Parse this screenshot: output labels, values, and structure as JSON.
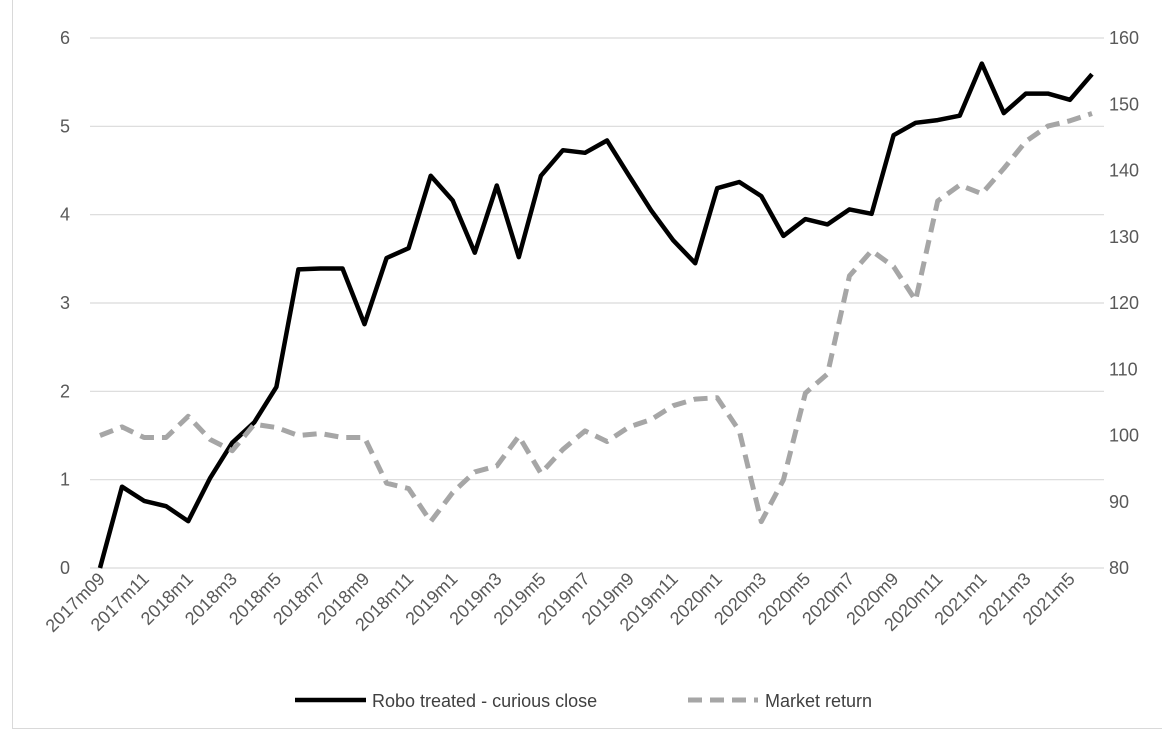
{
  "chart_data": {
    "type": "line",
    "title": "",
    "xlabel": "",
    "ylabel": "",
    "y2label": "",
    "x": [
      "2017m09",
      "2017m10",
      "2017m11",
      "2017m12",
      "2018m1",
      "2018m2",
      "2018m3",
      "2018m4",
      "2018m5",
      "2018m6",
      "2018m7",
      "2018m8",
      "2018m9",
      "2018m10",
      "2018m11",
      "2018m12",
      "2019m1",
      "2019m2",
      "2019m3",
      "2019m4",
      "2019m5",
      "2019m6",
      "2019m7",
      "2019m8",
      "2019m9",
      "2019m10",
      "2019m11",
      "2019m12",
      "2020m1",
      "2020m2",
      "2020m3",
      "2020m4",
      "2020m5",
      "2020m6",
      "2020m7",
      "2020m8",
      "2020m9",
      "2020m10",
      "2020m11",
      "2020m12",
      "2021m1",
      "2021m2",
      "2021m3",
      "2021m4",
      "2021m5",
      "2021m6"
    ],
    "x_tick_labels": [
      "2017m09",
      "2017m11",
      "2018m1",
      "2018m3",
      "2018m5",
      "2018m7",
      "2018m9",
      "2018m11",
      "2019m1",
      "2019m3",
      "2019m5",
      "2019m7",
      "2019m9",
      "2019m11",
      "2020m1",
      "2020m3",
      "2020m5",
      "2020m7",
      "2020m9",
      "2020m11",
      "2021m1",
      "2021m3",
      "2021m5"
    ],
    "ylim": [
      0,
      6
    ],
    "y_ticks": [
      "0",
      "1",
      "2",
      "3",
      "4",
      "5",
      "6"
    ],
    "y2lim": [
      80,
      160
    ],
    "y2_ticks": [
      "80",
      "90",
      "100",
      "110",
      "120",
      "130",
      "140",
      "150",
      "160"
    ],
    "grid": true,
    "legend_position": "bottom",
    "series": [
      {
        "name": "Robo treated - curious close",
        "axis": "left",
        "color": "#000000",
        "style": "solid",
        "values": [
          0,
          0.92,
          0.76,
          0.7,
          0.53,
          1.02,
          1.42,
          1.65,
          2.05,
          3.38,
          3.39,
          3.39,
          2.76,
          3.51,
          3.62,
          4.44,
          4.16,
          3.57,
          4.33,
          3.52,
          4.44,
          4.73,
          4.7,
          4.84,
          4.44,
          4.05,
          3.71,
          3.45,
          4.3,
          4.37,
          4.21,
          3.76,
          3.95,
          3.89,
          4.06,
          4.01,
          4.9,
          5.04,
          5.07,
          5.12,
          5.71,
          5.15,
          5.37,
          5.37,
          5.3,
          5.59
        ]
      },
      {
        "name": "Market return",
        "axis": "right",
        "color": "#a6a6a6",
        "style": "dashed",
        "values": [
          100.0,
          101.3,
          99.7,
          99.7,
          102.9,
          99.4,
          97.7,
          101.7,
          101.2,
          100.0,
          100.3,
          99.7,
          99.7,
          92.8,
          92.0,
          87.0,
          91.4,
          94.5,
          95.4,
          99.9,
          94.3,
          97.9,
          100.7,
          99.1,
          101.3,
          102.4,
          104.5,
          105.5,
          105.7,
          100.7,
          87.0,
          93.3,
          106.4,
          109.3,
          124.1,
          127.9,
          125.5,
          120.4,
          135.4,
          137.8,
          136.5,
          140.3,
          144.4,
          146.7,
          147.5,
          148.6
        ]
      }
    ]
  }
}
